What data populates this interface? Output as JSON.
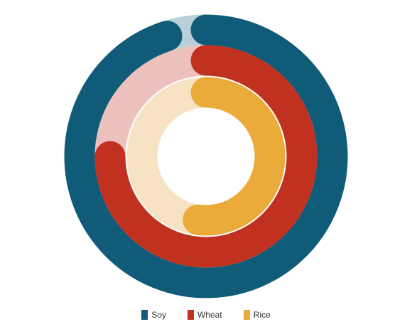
{
  "chart_data": {
    "type": "radial-bar",
    "max": 100,
    "legend_position": "bottom",
    "series": [
      {
        "name": "Soy",
        "value": 95,
        "color": "#0f5b78",
        "track_color": "#b9d0da"
      },
      {
        "name": "Wheat",
        "value": 75,
        "color": "#c0311f",
        "track_color": "#ecc1bd"
      },
      {
        "name": "Rice",
        "value": 52,
        "color": "#ebab3a",
        "track_color": "#f7e3c3"
      }
    ]
  }
}
